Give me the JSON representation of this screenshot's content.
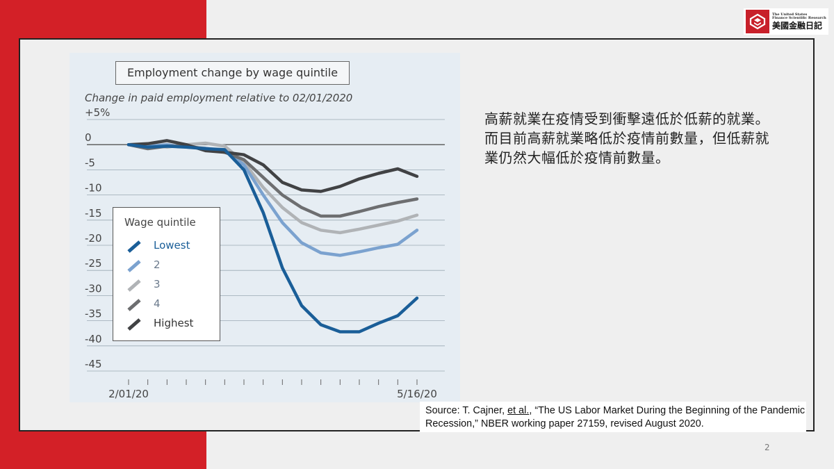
{
  "logo": {
    "en_line1": "The United States",
    "en_line2": "Finance Scientific Research",
    "zh": "美國金融日記",
    "brand_color": "#c8202a"
  },
  "description": "高薪就業在疫情受到衝擊遠低於低薪的就業。而目前高薪就業略低於疫情前數量，但低薪就業仍然大幅低於疫情前數量。",
  "source": {
    "prefix": "Source: T. Cajner, ",
    "etal": "et al.",
    "suffix": ", “The US Labor Market During the Beginning of the Pandemic Recession,” NBER working paper 27159, revised August 2020."
  },
  "page_number": "2",
  "legend_title": "Wage quintile",
  "chart_data": {
    "type": "line",
    "title": "Employment change by wage quintile",
    "subtitle": "Change in paid employment relative to 02/01/2020",
    "ylabel": "Change in paid employment relative to 02/01/2020",
    "ylim": [
      -45,
      5
    ],
    "yticks": [
      5,
      0,
      -5,
      -10,
      -15,
      -20,
      -25,
      -30,
      -35,
      -40,
      -45
    ],
    "ytick_labels": [
      "+5%",
      "0",
      "-5",
      "-10",
      "-15",
      "-20",
      "-25",
      "-30",
      "-35",
      "-40",
      "-45"
    ],
    "x": [
      0,
      1,
      2,
      3,
      4,
      5,
      6,
      7,
      8,
      9,
      10,
      11,
      12,
      13,
      14,
      15
    ],
    "x_tick_labels": [
      {
        "x": 0,
        "label": "2/01/20"
      },
      {
        "x": 15,
        "label": "5/16/20"
      }
    ],
    "grid": true,
    "legend_position": "left",
    "series": [
      {
        "name": "Lowest",
        "color": "#1a5e98",
        "values": [
          0,
          -0.5,
          -0.3,
          -0.5,
          -0.8,
          -1.0,
          -5.0,
          -13.5,
          -24.5,
          -32.0,
          -35.8,
          -37.2,
          -37.2,
          -35.5,
          -34.0,
          -30.5
        ]
      },
      {
        "name": "2",
        "color": "#7ba2cf",
        "values": [
          0,
          -0.3,
          0,
          -0.5,
          -0.7,
          -1.2,
          -4.0,
          -10.0,
          -15.5,
          -19.5,
          -21.5,
          -22.0,
          -21.3,
          -20.5,
          -19.8,
          -17.0
        ]
      },
      {
        "name": "3",
        "color": "#b0b3b6",
        "values": [
          0,
          0,
          -0.5,
          0,
          0.3,
          -0.3,
          -3.5,
          -8.5,
          -12.5,
          -15.5,
          -17.0,
          -17.5,
          -16.8,
          -16.0,
          -15.2,
          -14.0
        ]
      },
      {
        "name": "4",
        "color": "#6d6e70",
        "values": [
          0,
          -0.8,
          -0.3,
          -0.3,
          -0.8,
          -1.5,
          -3.0,
          -6.5,
          -10.0,
          -12.5,
          -14.2,
          -14.2,
          -13.3,
          -12.3,
          -11.5,
          -10.8
        ]
      },
      {
        "name": "Highest",
        "color": "#414244",
        "values": [
          0,
          0.2,
          0.8,
          0,
          -1.2,
          -1.5,
          -2.0,
          -4.0,
          -7.5,
          -9.0,
          -9.3,
          -8.3,
          -6.8,
          -5.7,
          -4.8,
          -6.3
        ]
      }
    ]
  }
}
